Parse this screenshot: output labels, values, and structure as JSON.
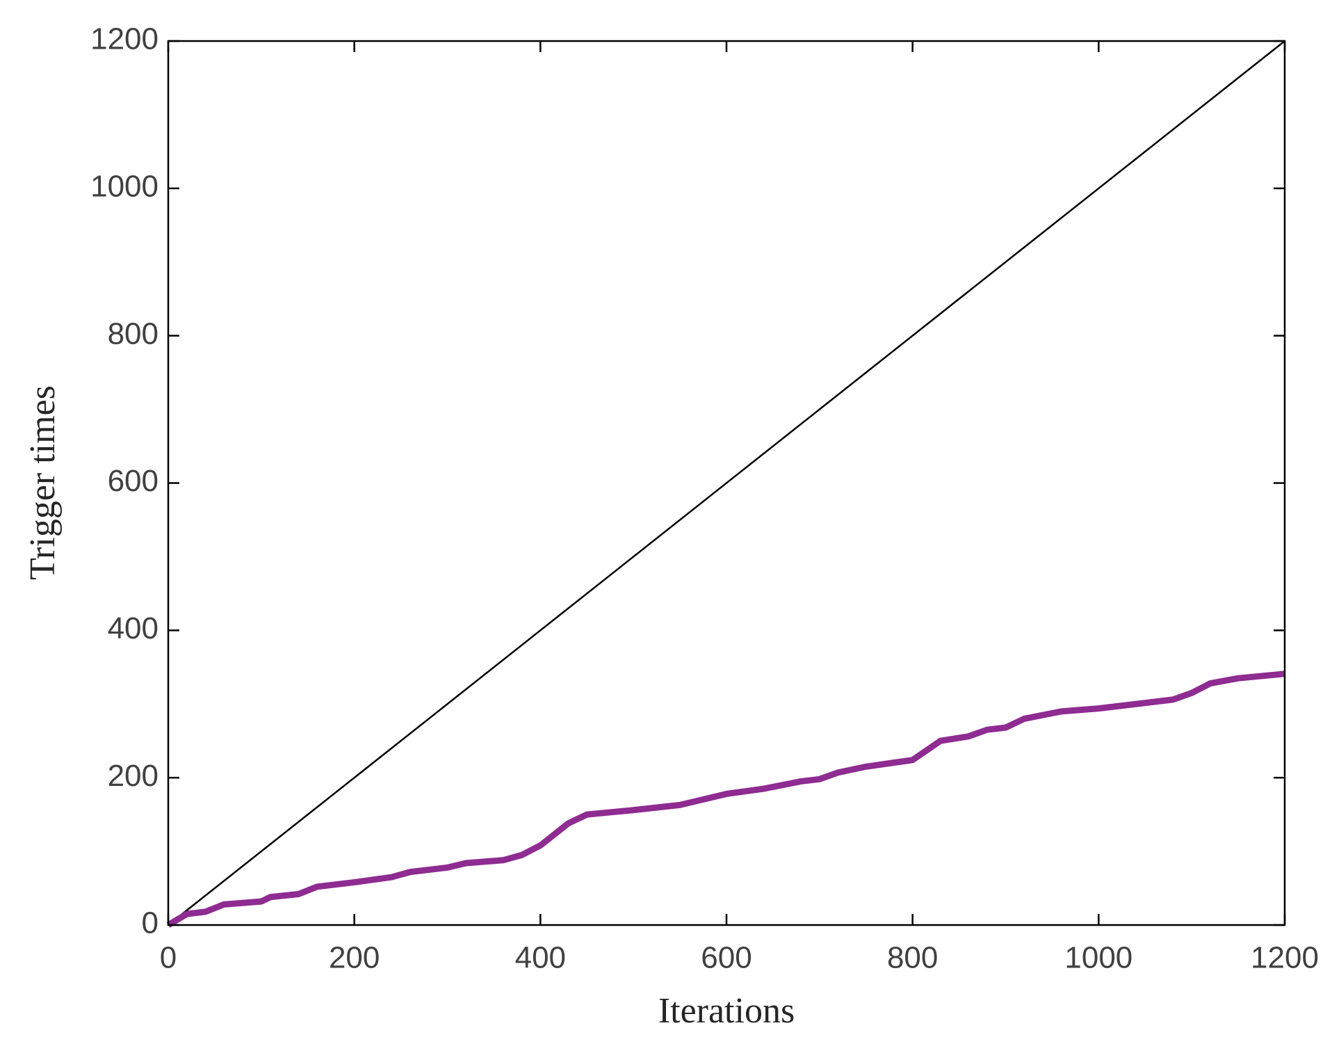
{
  "chart_data": {
    "type": "line",
    "x_label": "Iterations",
    "y_label": "Trigger times",
    "xlim": [
      0,
      1200
    ],
    "ylim": [
      0,
      1200
    ],
    "xticks": [
      0,
      200,
      400,
      600,
      800,
      1000,
      1200
    ],
    "yticks": [
      0,
      200,
      400,
      600,
      800,
      1000,
      1200
    ],
    "series": [
      {
        "color": "#000000",
        "width": 2.5,
        "x": [
          0,
          1200
        ],
        "values": [
          0,
          1200
        ]
      },
      {
        "color": "#8e2c91",
        "width": 9,
        "x": [
          0,
          20,
          40,
          60,
          100,
          110,
          140,
          160,
          200,
          240,
          260,
          300,
          320,
          360,
          380,
          400,
          430,
          450,
          500,
          550,
          600,
          640,
          680,
          700,
          720,
          750,
          800,
          830,
          860,
          880,
          900,
          920,
          960,
          1000,
          1040,
          1080,
          1100,
          1120,
          1150,
          1200
        ],
        "values": [
          0,
          15,
          18,
          28,
          32,
          38,
          42,
          52,
          58,
          65,
          72,
          78,
          84,
          88,
          95,
          108,
          138,
          150,
          156,
          163,
          178,
          185,
          195,
          198,
          207,
          215,
          224,
          250,
          256,
          265,
          268,
          280,
          290,
          294,
          300,
          306,
          315,
          328,
          335,
          341
        ]
      }
    ]
  }
}
